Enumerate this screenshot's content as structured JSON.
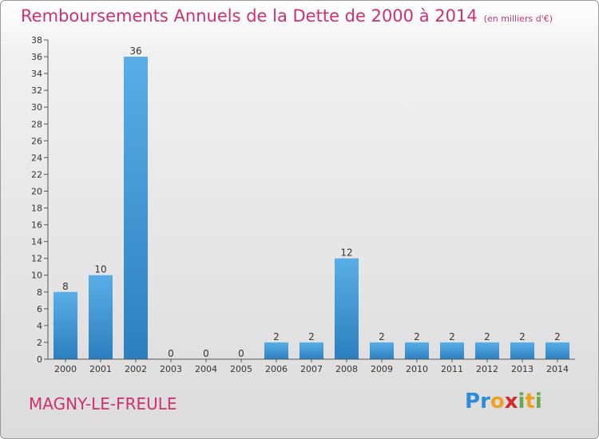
{
  "title": "Remboursements Annuels de la Dette de 2000 à 2014",
  "unit": "(en milliers d'€)",
  "town": "MAGNY-LE-FREULE",
  "logo": {
    "text": "Proxiti",
    "letters": [
      {
        "ch": "P",
        "color": "#2e8bd8"
      },
      {
        "ch": "r",
        "color": "#2e8bd8"
      },
      {
        "ch": "o",
        "color": "#f0a020"
      },
      {
        "ch": "x",
        "color": "#d62828"
      },
      {
        "ch": "i",
        "color": "#6aa84f"
      },
      {
        "ch": "t",
        "color": "#f0a020"
      },
      {
        "ch": "i",
        "color": "#6aa84f"
      }
    ]
  },
  "colors": {
    "bar_light": "#5aaee6",
    "bar_dark": "#2c7fbf",
    "title": "#d1306f",
    "axis": "#555555"
  },
  "chart_data": {
    "type": "bar",
    "title": "Remboursements Annuels de la Dette de 2000 à 2014",
    "subtitle": "(en milliers d'€)",
    "xlabel": "",
    "ylabel": "",
    "categories": [
      "2000",
      "2001",
      "2002",
      "2003",
      "2004",
      "2005",
      "2006",
      "2007",
      "2008",
      "2009",
      "2010",
      "2011",
      "2012",
      "2013",
      "2014"
    ],
    "values": [
      8,
      10,
      36,
      0,
      0,
      0,
      2,
      2,
      12,
      2,
      2,
      2,
      2,
      2,
      2
    ],
    "value_labels": [
      "8",
      "10",
      "36",
      "0",
      "0",
      "0",
      "2",
      "2",
      "12",
      "2",
      "2",
      "2",
      "2",
      "2",
      "2"
    ],
    "ylim": [
      0,
      38
    ],
    "yticks": [
      "0",
      "2",
      "4",
      "6",
      "8",
      "10",
      "12",
      "14",
      "16",
      "18",
      "20",
      "22",
      "24",
      "26",
      "28",
      "30",
      "32",
      "34",
      "36",
      "38"
    ],
    "grid": false,
    "legend": "none"
  }
}
